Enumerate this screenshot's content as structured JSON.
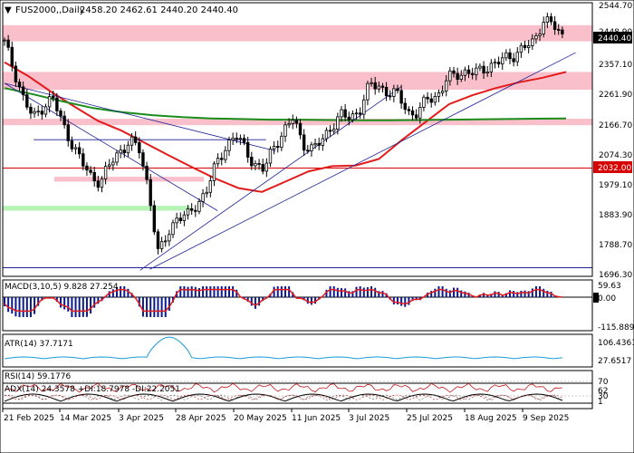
{
  "chart_data": {
    "type": "candlestick",
    "header": {
      "symbol_line": "FUS2000,,Daily",
      "ohlc": "2458.20 2462.61 2440.20 2440.40"
    },
    "price_axis": {
      "ticks": [
        "2544.70",
        "2448.90",
        "2357.10",
        "2261.90",
        "2166.70",
        "2074.30",
        "1979.10",
        "1883.90",
        "1788.70",
        "1696.30"
      ],
      "current_price": "2440.40",
      "level_label": "2032.00",
      "range": [
        1696.3,
        2544.7
      ]
    },
    "x_axis": {
      "labels": [
        "21 Feb 2025",
        "14 Mar 2025",
        "3 Apr 2025",
        "28 Apr 2025",
        "20 May 2025",
        "11 Jun 2025",
        "3 Jul 2025",
        "25 Jul 2025",
        "18 Aug 2025",
        "9 Sep 2025"
      ]
    },
    "zones": [
      {
        "kind": "resistance",
        "from": 2425,
        "to": 2475,
        "color": "#f9c0cb"
      },
      {
        "kind": "resistance",
        "from": 2275,
        "to": 2330,
        "color": "#f9c0cb"
      },
      {
        "kind": "resistance",
        "from": 2165,
        "to": 2185,
        "color": "#f9c0cb"
      },
      {
        "kind": "resistance",
        "from": 1990,
        "to": 2005,
        "color": "#f9c0cb"
      },
      {
        "kind": "support",
        "from": 1900,
        "to": 1915,
        "color": "#b6f4b6"
      }
    ],
    "horizontal_lines": [
      {
        "value": 2032,
        "color": "#d60000"
      },
      {
        "value": 1723,
        "color": "#1d2096"
      }
    ],
    "ohlc_ref": [
      2420,
      2335,
      2245,
      2185,
      2225,
      2250,
      2170,
      2110,
      2050,
      2005,
      1990,
      2045,
      2085,
      2115,
      2090,
      1965,
      1760,
      1830,
      1885,
      1880,
      1920,
      1965,
      2040,
      2100,
      2135,
      2090,
      2045,
      2025,
      2100,
      2145,
      2185,
      2110,
      2090,
      2115,
      2165,
      2195,
      2185,
      2220,
      2290,
      2285,
      2265,
      2255,
      2205,
      2200,
      2250,
      2255,
      2305,
      2325,
      2330,
      2325,
      2345,
      2355,
      2370,
      2385,
      2405,
      2420,
      2495,
      2475,
      2440
    ],
    "moving_averages": [
      {
        "color": "#e31b1b",
        "values": [
          2360,
          2318,
          2268,
          2222,
          2178,
          2148,
          2110,
          2072,
          2035,
          2000,
          1970,
          1958,
          1990,
          2022,
          2038,
          2040,
          2060,
          2120,
          2175,
          2230,
          2258,
          2280,
          2298,
          2312,
          2330
        ]
      },
      {
        "color": "#1a8c1a",
        "values": [
          2280,
          2260,
          2238,
          2218,
          2205,
          2196,
          2190,
          2186,
          2184,
          2182,
          2182,
          2181,
          2180,
          2180,
          2181,
          2182,
          2183,
          2184,
          2185,
          2186
        ]
      }
    ],
    "trendlines": [
      {
        "color": "#1d2096",
        "from": [
          0,
          2295
        ],
        "to": [
          22,
          1900
        ]
      },
      {
        "color": "#1d2096",
        "from": [
          0,
          2295
        ],
        "to": [
          28,
          2085
        ]
      },
      {
        "color": "#1d2096",
        "from": [
          15,
          1718
        ],
        "to": [
          59,
          2390
        ]
      },
      {
        "color": "#1d2096",
        "from": [
          14,
          1715
        ],
        "to": [
          41,
          2285
        ]
      },
      {
        "color": "#1d2096",
        "from": [
          3,
          2120
        ],
        "to": [
          27,
          2120
        ]
      }
    ],
    "indicators": [
      {
        "name": "MACD",
        "label": "MACD(3,10,5) 9.828 27.254",
        "ticks": [
          "59.63",
          "0.00",
          "-115.889"
        ]
      },
      {
        "name": "ATR",
        "label": "ATR(14) 37.7171",
        "ticks": [
          "106.4361",
          "27.6517"
        ]
      },
      {
        "name": "RSI",
        "label": "RSI(14) 59.1776",
        "ticks": [
          "70",
          "30"
        ]
      },
      {
        "name": "ADX",
        "label": "ADX(14) 24.3578 +DI:18.7978 -DI:22.2051",
        "ticks": [
          "62",
          "1"
        ]
      }
    ]
  }
}
